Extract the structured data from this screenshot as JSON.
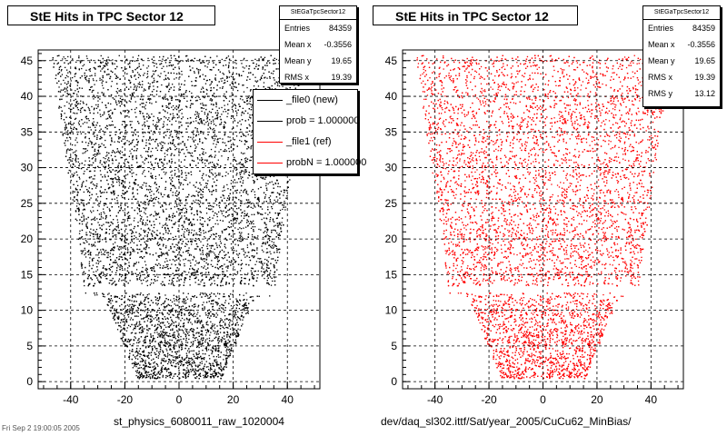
{
  "chart_data": [
    {
      "type": "scatter",
      "title": "StE Hits in TPC Sector 12",
      "xlabel": "st_physics_6080011_raw_1020004",
      "ylabel": "",
      "xlim": [
        -52,
        52
      ],
      "ylim": [
        -1,
        46.5
      ],
      "x_ticks": [
        -40,
        -20,
        0,
        20,
        40
      ],
      "y_ticks": [
        0,
        5,
        10,
        15,
        20,
        25,
        30,
        35,
        40,
        45
      ],
      "grid": true,
      "color": "#000000",
      "stats": {
        "name": "StEGaTpcSector12",
        "rows": [
          {
            "label": "Entries",
            "value": "84359"
          },
          {
            "label": "Mean x",
            "value": "-0.3556"
          },
          {
            "label": "Mean y",
            "value": "19.65"
          },
          {
            "label": "RMS x",
            "value": "19.39"
          }
        ]
      },
      "legend": [
        {
          "label": "_file0 (new)",
          "color": "#000000"
        },
        {
          "label": "prob = 1.000000",
          "color": "#000000"
        },
        {
          "label": "_file1 (ref)",
          "color": "#ff0000"
        },
        {
          "label": "probN = 1.000000",
          "color": "#ff0000"
        }
      ],
      "hit_region": {
        "rows": [
          0,
          45
        ],
        "half_width_at_row0": 15,
        "half_width_at_row12": 28,
        "half_width_at_row13": 35,
        "half_width_at_row45": 47,
        "gap_rows": [
          12.5,
          13.5
        ],
        "entries": 84359
      }
    },
    {
      "type": "scatter",
      "title": "StE Hits in TPC Sector 12",
      "xlabel": "dev/daq_sl302.ittf/Sat/year_2005/CuCu62_MinBias/",
      "ylabel": "",
      "xlim": [
        -52,
        52
      ],
      "ylim": [
        -1,
        46.5
      ],
      "x_ticks": [
        -40,
        -20,
        0,
        20,
        40
      ],
      "y_ticks": [
        0,
        5,
        10,
        15,
        20,
        25,
        30,
        35,
        40,
        45
      ],
      "grid": true,
      "color": "#ff0000",
      "stats": {
        "name": "StEGaTpcSector12",
        "rows": [
          {
            "label": "Entries",
            "value": "84359"
          },
          {
            "label": "Mean x",
            "value": "-0.3556"
          },
          {
            "label": "Mean y",
            "value": "19.65"
          },
          {
            "label": "RMS x",
            "value": "19.39"
          },
          {
            "label": "RMS y",
            "value": "13.12"
          }
        ]
      }
    }
  ],
  "footer": "Fri Sep 2 19:00:05 2005"
}
